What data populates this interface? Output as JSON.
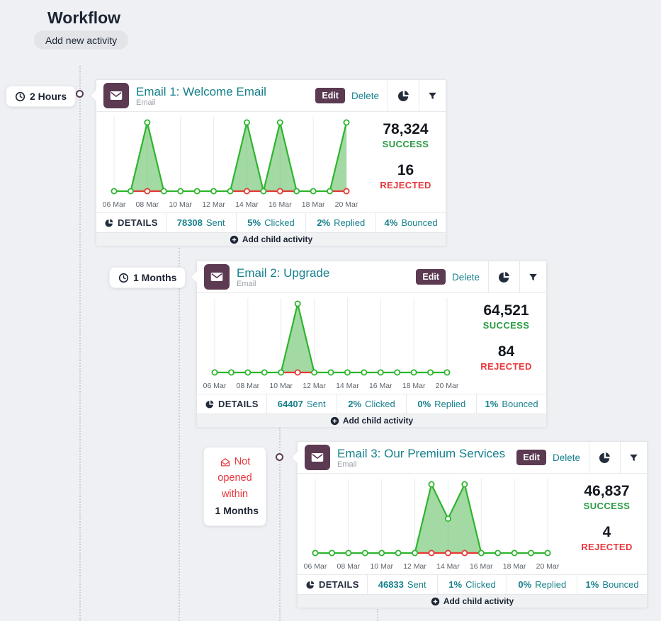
{
  "page": {
    "title": "Workflow",
    "add_new_activity": "Add new activity"
  },
  "colors": {
    "teal": "#17808d",
    "plum": "#5b3a52",
    "navy": "#232d3d",
    "success_green": "#2a9c44",
    "rejected_red": "#e8373d",
    "chart_green": "#2db52d",
    "chart_fill": "#57b957",
    "chart_red": "#e53935",
    "grid": "#e9ebee",
    "background": "#eef0f3"
  },
  "connectors": [
    {
      "type": "delay",
      "icon": "clock-icon",
      "label": "2 Hours"
    },
    {
      "type": "delay",
      "icon": "clock-icon",
      "label": "1 Months"
    },
    {
      "type": "condition",
      "icons": [
        "mail-open-icon",
        "clock-icon"
      ],
      "line1": "Not",
      "line2": "opened",
      "line3": "within",
      "duration": "1 Months"
    }
  ],
  "cards": [
    {
      "title": "Email 1: Welcome Email",
      "subtitle": "Email",
      "type_icon": "envelope-icon",
      "edit_label": "Edit",
      "delete_label": "Delete",
      "stats": {
        "success_value": "78,324",
        "success_label": "SUCCESS",
        "rejected_value": "16",
        "rejected_label": "REJECTED"
      },
      "footer": {
        "details": "DETAILS",
        "cells": [
          {
            "value": "78308",
            "label": "Sent"
          },
          {
            "value": "5%",
            "label": "Clicked"
          },
          {
            "value": "2%",
            "label": "Replied"
          },
          {
            "value": "4%",
            "label": "Bounced"
          }
        ]
      },
      "add_child": "Add child activity",
      "chart_data": {
        "type": "area",
        "x": [
          "06 Mar",
          "07 Mar",
          "08 Mar",
          "09 Mar",
          "10 Mar",
          "11 Mar",
          "12 Mar",
          "13 Mar",
          "14 Mar",
          "15 Mar",
          "16 Mar",
          "17 Mar",
          "18 Mar",
          "19 Mar",
          "20 Mar"
        ],
        "x_tick_labels": [
          "06 Mar",
          "08 Mar",
          "10 Mar",
          "12 Mar",
          "14 Mar",
          "16 Mar",
          "18 Mar",
          "20 Mar"
        ],
        "ylim": [
          0,
          100
        ],
        "grid": true,
        "series": [
          {
            "name": "success",
            "values": [
              0,
              0,
              100,
              0,
              0,
              0,
              0,
              0,
              100,
              0,
              100,
              0,
              0,
              0,
              100
            ]
          },
          {
            "name": "rejected",
            "baseline_segments": [
              [
                1,
                3
              ],
              [
                7,
                11
              ],
              [
                13,
                14
              ]
            ],
            "marker_days": [
              2,
              8,
              10,
              14
            ]
          }
        ]
      }
    },
    {
      "title": "Email 2: Upgrade",
      "subtitle": "Email",
      "type_icon": "envelope-icon",
      "edit_label": "Edit",
      "delete_label": "Delete",
      "stats": {
        "success_value": "64,521",
        "success_label": "SUCCESS",
        "rejected_value": "84",
        "rejected_label": "REJECTED"
      },
      "footer": {
        "details": "DETAILS",
        "cells": [
          {
            "value": "64407",
            "label": "Sent"
          },
          {
            "value": "2%",
            "label": "Clicked"
          },
          {
            "value": "0%",
            "label": "Replied"
          },
          {
            "value": "1%",
            "label": "Bounced"
          }
        ]
      },
      "add_child": "Add child activity",
      "chart_data": {
        "type": "area",
        "x": [
          "06 Mar",
          "07 Mar",
          "08 Mar",
          "09 Mar",
          "10 Mar",
          "11 Mar",
          "12 Mar",
          "13 Mar",
          "14 Mar",
          "15 Mar",
          "16 Mar",
          "17 Mar",
          "18 Mar",
          "19 Mar",
          "20 Mar"
        ],
        "x_tick_labels": [
          "06 Mar",
          "08 Mar",
          "10 Mar",
          "12 Mar",
          "14 Mar",
          "16 Mar",
          "18 Mar",
          "20 Mar"
        ],
        "ylim": [
          0,
          100
        ],
        "grid": true,
        "series": [
          {
            "name": "success",
            "values": [
              0,
              0,
              0,
              0,
              0,
              100,
              0,
              0,
              0,
              0,
              0,
              0,
              0,
              0,
              0
            ]
          },
          {
            "name": "rejected",
            "baseline_segments": [
              [
                4,
                6
              ]
            ],
            "marker_days": [
              5
            ]
          }
        ]
      }
    },
    {
      "title": "Email 3: Our Premium Services",
      "subtitle": "Email",
      "type_icon": "envelope-icon",
      "edit_label": "Edit",
      "delete_label": "Delete",
      "stats": {
        "success_value": "46,837",
        "success_label": "SUCCESS",
        "rejected_value": "4",
        "rejected_label": "REJECTED"
      },
      "footer": {
        "details": "DETAILS",
        "cells": [
          {
            "value": "46833",
            "label": "Sent"
          },
          {
            "value": "1%",
            "label": "Clicked"
          },
          {
            "value": "0%",
            "label": "Replied"
          },
          {
            "value": "1%",
            "label": "Bounced"
          }
        ]
      },
      "add_child": "Add child activity",
      "chart_data": {
        "type": "area",
        "x": [
          "06 Mar",
          "07 Mar",
          "08 Mar",
          "09 Mar",
          "10 Mar",
          "11 Mar",
          "12 Mar",
          "13 Mar",
          "14 Mar",
          "15 Mar",
          "16 Mar",
          "17 Mar",
          "18 Mar",
          "19 Mar",
          "20 Mar"
        ],
        "x_tick_labels": [
          "06 Mar",
          "08 Mar",
          "10 Mar",
          "12 Mar",
          "14 Mar",
          "16 Mar",
          "18 Mar",
          "20 Mar"
        ],
        "ylim": [
          0,
          100
        ],
        "grid": true,
        "series": [
          {
            "name": "success",
            "values": [
              0,
              0,
              0,
              0,
              0,
              0,
              0,
              100,
              50,
              100,
              0,
              0,
              0,
              0,
              0
            ]
          },
          {
            "name": "rejected",
            "baseline_segments": [
              [
                6,
                10
              ]
            ],
            "marker_days": [
              7,
              8,
              9
            ]
          }
        ]
      }
    }
  ]
}
